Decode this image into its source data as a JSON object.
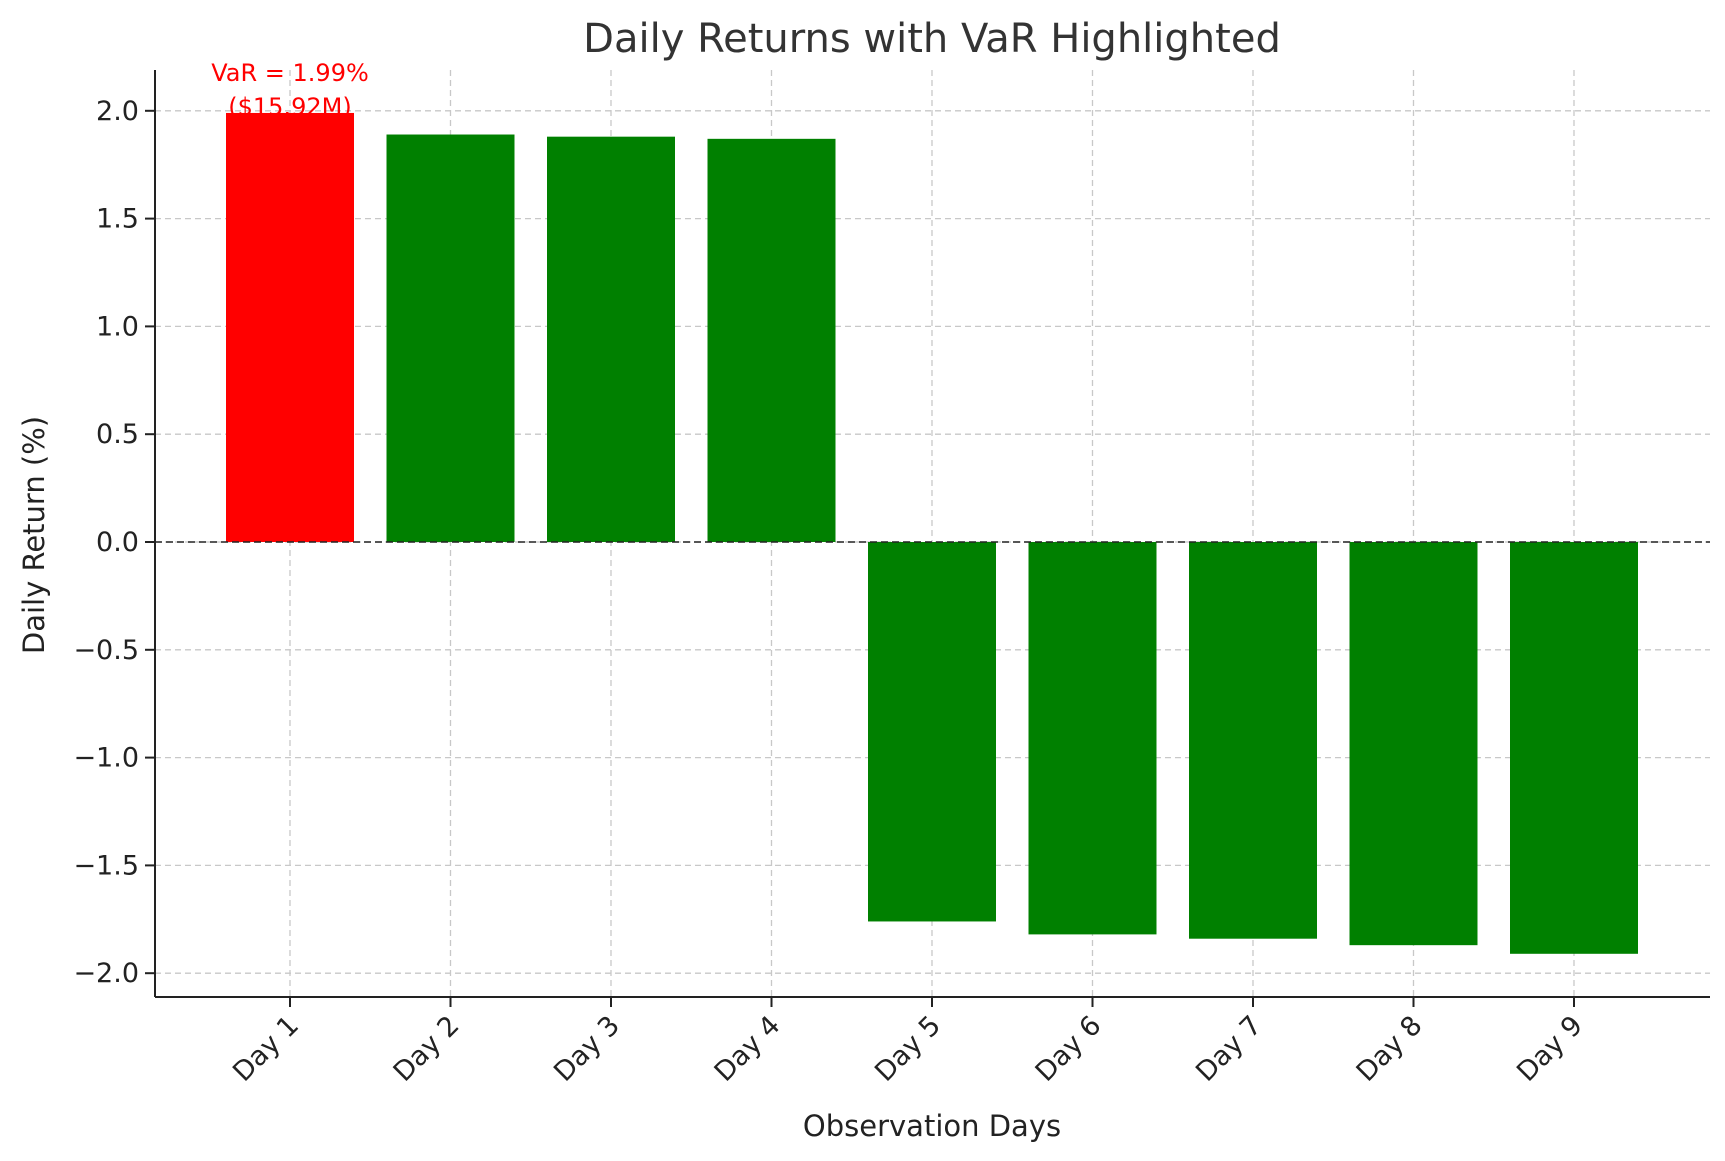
{
  "chart_data": {
    "type": "bar",
    "title": "Daily Returns with VaR Highlighted",
    "xlabel": "Observation Days",
    "ylabel": "Daily Return (%)",
    "categories": [
      "Day 1",
      "Day 2",
      "Day 3",
      "Day 4",
      "Day 5",
      "Day 6",
      "Day 7",
      "Day 8",
      "Day 9"
    ],
    "values": [
      1.99,
      1.89,
      1.88,
      1.87,
      -1.76,
      -1.82,
      -1.84,
      -1.87,
      -1.91
    ],
    "bar_colors": [
      "#ff0000",
      "#008000",
      "#008000",
      "#008000",
      "#008000",
      "#008000",
      "#008000",
      "#008000",
      "#008000"
    ],
    "ylim": [
      -2.1,
      2.18
    ],
    "yticks": [
      2.0,
      1.5,
      1.0,
      0.5,
      0.0,
      -0.5,
      -1.0,
      -1.5,
      -2.0
    ],
    "ytick_labels": [
      "2.0",
      "1.5",
      "1.0",
      "0.5",
      "0.0",
      "−0.5",
      "−1.0",
      "−1.5",
      "−2.0"
    ],
    "grid": true,
    "zero_line": true,
    "annotation": {
      "category": "Day 1",
      "lines": [
        "VaR = 1.99%",
        "($15.92M)"
      ],
      "color": "#ff0000"
    }
  }
}
